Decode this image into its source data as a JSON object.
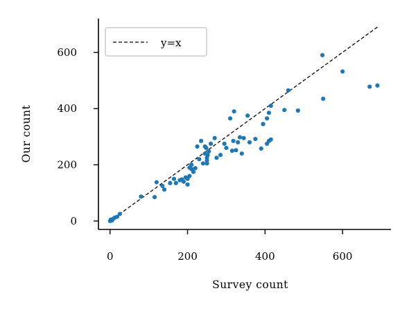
{
  "chart_data": {
    "type": "scatter",
    "xlabel": "Survey count",
    "ylabel": "Our count",
    "xlim": [
      -30,
      725
    ],
    "ylim": [
      -30,
      720
    ],
    "xticks": [
      0,
      200,
      400,
      600
    ],
    "yticks": [
      0,
      200,
      400,
      600
    ],
    "grid": false,
    "legend_position": "top-left",
    "reference_line": {
      "label": "y=x",
      "x": [
        0,
        690
      ],
      "y": [
        0,
        690
      ],
      "style": "dashed",
      "color": "#000000"
    },
    "point_color": "#1f77b4",
    "points": [
      [
        0,
        0
      ],
      [
        2,
        5
      ],
      [
        5,
        2
      ],
      [
        8,
        8
      ],
      [
        12,
        12
      ],
      [
        18,
        15
      ],
      [
        25,
        25
      ],
      [
        80,
        87
      ],
      [
        115,
        85
      ],
      [
        120,
        138
      ],
      [
        135,
        125
      ],
      [
        140,
        112
      ],
      [
        155,
        135
      ],
      [
        165,
        150
      ],
      [
        170,
        135
      ],
      [
        180,
        145
      ],
      [
        185,
        148
      ],
      [
        190,
        140
      ],
      [
        195,
        155
      ],
      [
        200,
        150
      ],
      [
        200,
        130
      ],
      [
        205,
        160
      ],
      [
        205,
        190
      ],
      [
        210,
        185
      ],
      [
        210,
        200
      ],
      [
        215,
        175
      ],
      [
        220,
        188
      ],
      [
        225,
        265
      ],
      [
        230,
        220
      ],
      [
        235,
        285
      ],
      [
        240,
        205
      ],
      [
        245,
        240
      ],
      [
        245,
        265
      ],
      [
        248,
        260
      ],
      [
        250,
        205
      ],
      [
        250,
        215
      ],
      [
        250,
        225
      ],
      [
        252,
        235
      ],
      [
        255,
        248
      ],
      [
        260,
        275
      ],
      [
        270,
        295
      ],
      [
        275,
        225
      ],
      [
        285,
        235
      ],
      [
        295,
        275
      ],
      [
        300,
        260
      ],
      [
        310,
        365
      ],
      [
        315,
        250
      ],
      [
        318,
        285
      ],
      [
        320,
        390
      ],
      [
        325,
        252
      ],
      [
        330,
        280
      ],
      [
        335,
        298
      ],
      [
        340,
        240
      ],
      [
        345,
        295
      ],
      [
        355,
        375
      ],
      [
        360,
        280
      ],
      [
        375,
        292
      ],
      [
        390,
        258
      ],
      [
        395,
        345
      ],
      [
        405,
        275
      ],
      [
        405,
        365
      ],
      [
        410,
        285
      ],
      [
        410,
        385
      ],
      [
        415,
        410
      ],
      [
        415,
        290
      ],
      [
        450,
        395
      ],
      [
        460,
        465
      ],
      [
        485,
        393
      ],
      [
        548,
        590
      ],
      [
        550,
        435
      ],
      [
        600,
        532
      ],
      [
        670,
        478
      ],
      [
        690,
        482
      ]
    ]
  }
}
